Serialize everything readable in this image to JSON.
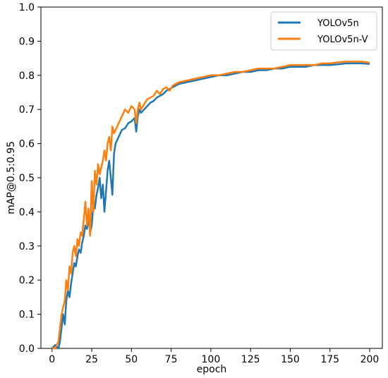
{
  "chart_data": {
    "type": "line",
    "title": "",
    "xlabel": "epoch",
    "ylabel": "mAP@0.5:0.95",
    "xlim": [
      -7,
      208
    ],
    "ylim": [
      0,
      1.0
    ],
    "x_ticks": [
      0,
      25,
      50,
      75,
      100,
      125,
      150,
      175,
      200
    ],
    "x_tick_labels": [
      "0",
      "25",
      "50",
      "75",
      "100",
      "125",
      "150",
      "175",
      "200"
    ],
    "y_ticks": [
      0.0,
      0.1,
      0.2,
      0.3,
      0.4,
      0.5,
      0.6,
      0.7,
      0.8,
      0.9,
      1.0
    ],
    "y_tick_labels": [
      "0.0",
      "0.1",
      "0.2",
      "0.3",
      "0.4",
      "0.5",
      "0.6",
      "0.7",
      "0.8",
      "0.9",
      "1.0"
    ],
    "grid": false,
    "legend_position": "top-right",
    "series": [
      {
        "name": "YOLOv5n",
        "color": "#1f77b4",
        "x": [
          0,
          2,
          4,
          5,
          6,
          7,
          8,
          9,
          10,
          11,
          12,
          13,
          14,
          15,
          16,
          17,
          18,
          19,
          20,
          21,
          22,
          23,
          24,
          25,
          26,
          27,
          28,
          29,
          30,
          31,
          32,
          33,
          34,
          35,
          36,
          37,
          38,
          39,
          40,
          42,
          44,
          46,
          48,
          50,
          52,
          53,
          54,
          55,
          56,
          58,
          60,
          62,
          64,
          66,
          68,
          70,
          72,
          74,
          76,
          78,
          80,
          85,
          90,
          95,
          100,
          105,
          110,
          115,
          120,
          125,
          130,
          135,
          140,
          145,
          150,
          155,
          160,
          165,
          170,
          175,
          180,
          185,
          190,
          195,
          200
        ],
        "y": [
          0.0,
          0.01,
          0.0,
          0.02,
          0.06,
          0.1,
          0.07,
          0.14,
          0.17,
          0.15,
          0.19,
          0.22,
          0.25,
          0.24,
          0.27,
          0.29,
          0.28,
          0.31,
          0.33,
          0.36,
          0.35,
          0.38,
          0.34,
          0.36,
          0.42,
          0.41,
          0.45,
          0.47,
          0.5,
          0.44,
          0.48,
          0.4,
          0.46,
          0.52,
          0.55,
          0.5,
          0.45,
          0.57,
          0.6,
          0.62,
          0.64,
          0.645,
          0.66,
          0.665,
          0.675,
          0.635,
          0.68,
          0.7,
          0.69,
          0.7,
          0.71,
          0.72,
          0.725,
          0.735,
          0.74,
          0.745,
          0.755,
          0.76,
          0.765,
          0.77,
          0.775,
          0.78,
          0.785,
          0.79,
          0.795,
          0.8,
          0.8,
          0.805,
          0.81,
          0.81,
          0.815,
          0.815,
          0.82,
          0.82,
          0.825,
          0.825,
          0.825,
          0.83,
          0.83,
          0.83,
          0.832,
          0.835,
          0.835,
          0.835,
          0.833
        ]
      },
      {
        "name": "YOLOv5n-V",
        "color": "#ff7f0e",
        "x": [
          0,
          2,
          4,
          5,
          6,
          7,
          8,
          9,
          10,
          11,
          12,
          13,
          14,
          15,
          16,
          17,
          18,
          19,
          20,
          21,
          22,
          23,
          24,
          25,
          26,
          27,
          28,
          29,
          30,
          31,
          32,
          33,
          34,
          35,
          36,
          37,
          38,
          39,
          40,
          42,
          44,
          46,
          48,
          50,
          52,
          53,
          54,
          55,
          56,
          58,
          60,
          62,
          64,
          66,
          68,
          70,
          72,
          74,
          76,
          78,
          80,
          85,
          90,
          95,
          100,
          105,
          110,
          115,
          120,
          125,
          130,
          135,
          140,
          145,
          150,
          155,
          160,
          165,
          170,
          175,
          180,
          185,
          190,
          195,
          200
        ],
        "y": [
          0.0,
          0.0,
          0.02,
          0.06,
          0.1,
          0.12,
          0.14,
          0.2,
          0.17,
          0.24,
          0.22,
          0.28,
          0.3,
          0.27,
          0.32,
          0.3,
          0.34,
          0.33,
          0.38,
          0.43,
          0.36,
          0.41,
          0.33,
          0.49,
          0.4,
          0.52,
          0.48,
          0.54,
          0.51,
          0.53,
          0.55,
          0.58,
          0.55,
          0.6,
          0.62,
          0.58,
          0.65,
          0.63,
          0.64,
          0.66,
          0.68,
          0.7,
          0.69,
          0.71,
          0.7,
          0.66,
          0.7,
          0.72,
          0.7,
          0.715,
          0.73,
          0.735,
          0.74,
          0.755,
          0.745,
          0.76,
          0.765,
          0.755,
          0.77,
          0.775,
          0.78,
          0.785,
          0.79,
          0.795,
          0.8,
          0.8,
          0.805,
          0.81,
          0.81,
          0.815,
          0.82,
          0.82,
          0.82,
          0.825,
          0.83,
          0.83,
          0.83,
          0.83,
          0.835,
          0.835,
          0.838,
          0.84,
          0.84,
          0.84,
          0.837
        ]
      }
    ]
  }
}
